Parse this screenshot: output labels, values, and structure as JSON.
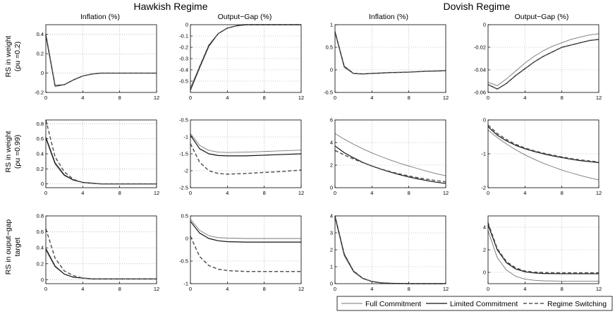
{
  "regimes": [
    "Hawkish Regime",
    "Dovish Regime"
  ],
  "columns": [
    "Inflation (%)",
    "Output−Gap (%)",
    "Inflation (%)",
    "Output−Gap (%)"
  ],
  "rows": [
    [
      "RS in weight",
      "(ρu =0.2)"
    ],
    [
      "RS in weight",
      "(ρu =0.99)"
    ],
    [
      "RS in ouput−gap",
      "target"
    ]
  ],
  "legend": [
    {
      "label": "Full Commitment",
      "style": "thin"
    },
    {
      "label": "Limited Commitment",
      "style": "solid"
    },
    {
      "label": "Regime Switching",
      "style": "dashed"
    }
  ],
  "colors": {
    "full": "#777777",
    "limited": "#111111",
    "switching": "#555555"
  },
  "chart_data": [
    {
      "type": "line",
      "row": 0,
      "col": 0,
      "xlim": [
        0,
        12
      ],
      "ylim": [
        -0.2,
        0.5
      ],
      "xticks": [
        "0",
        "4",
        "8",
        "12"
      ],
      "yticks": [
        "0.4",
        "0.2",
        "0",
        "-0.2"
      ],
      "ytick_values": [
        0.4,
        0.2,
        0,
        -0.2
      ],
      "x": [
        0,
        1,
        2,
        3,
        4,
        5,
        6,
        8,
        10,
        12
      ],
      "series": [
        {
          "name": "Full Commitment",
          "values": [
            0.38,
            -0.14,
            -0.12,
            -0.07,
            -0.03,
            -0.01,
            0.0,
            0.0,
            0.0,
            0.0
          ]
        },
        {
          "name": "Limited Commitment",
          "values": [
            0.4,
            -0.13,
            -0.12,
            -0.07,
            -0.03,
            -0.01,
            0.0,
            0.0,
            0.0,
            0.0
          ]
        },
        {
          "name": "Regime Switching",
          "values": [
            0.39,
            -0.13,
            -0.12,
            -0.07,
            -0.03,
            -0.01,
            0.0,
            0.0,
            0.0,
            0.0
          ]
        }
      ]
    },
    {
      "type": "line",
      "row": 0,
      "col": 1,
      "xlim": [
        0,
        12
      ],
      "ylim": [
        -0.6,
        0
      ],
      "xticks": [
        "0",
        "4",
        "8",
        "12"
      ],
      "yticks": [
        "0",
        "-0.1",
        "-0.2",
        "-0.3",
        "-0.4",
        "-0.5"
      ],
      "ytick_values": [
        0,
        -0.1,
        -0.2,
        -0.3,
        -0.4,
        -0.5
      ],
      "x": [
        0,
        1,
        2,
        3,
        4,
        5,
        6,
        8,
        10,
        12
      ],
      "series": [
        {
          "name": "Full Commitment",
          "values": [
            -0.56,
            -0.37,
            -0.18,
            -0.08,
            -0.03,
            -0.01,
            0.0,
            0.0,
            0.0,
            0.0
          ]
        },
        {
          "name": "Limited Commitment",
          "values": [
            -0.58,
            -0.38,
            -0.19,
            -0.08,
            -0.03,
            -0.01,
            0.0,
            0.0,
            0.0,
            0.0
          ]
        },
        {
          "name": "Regime Switching",
          "values": [
            -0.57,
            -0.37,
            -0.18,
            -0.08,
            -0.03,
            -0.01,
            0.0,
            0.0,
            0.0,
            0.0
          ]
        }
      ]
    },
    {
      "type": "line",
      "row": 0,
      "col": 2,
      "xlim": [
        0,
        12
      ],
      "ylim": [
        -0.5,
        1
      ],
      "xticks": [
        "0",
        "4",
        "8",
        "12"
      ],
      "yticks": [
        "1",
        "0.5",
        "0",
        "-0.5"
      ],
      "ytick_values": [
        1,
        0.5,
        0,
        -0.5
      ],
      "x": [
        0,
        1,
        2,
        3,
        4,
        6,
        8,
        10,
        12
      ],
      "series": [
        {
          "name": "Full Commitment",
          "values": [
            0.82,
            0.05,
            -0.08,
            -0.09,
            -0.08,
            -0.06,
            -0.05,
            -0.03,
            -0.02
          ]
        },
        {
          "name": "Limited Commitment",
          "values": [
            0.85,
            0.08,
            -0.08,
            -0.09,
            -0.08,
            -0.06,
            -0.05,
            -0.03,
            -0.02
          ]
        },
        {
          "name": "Regime Switching",
          "values": [
            0.84,
            0.07,
            -0.08,
            -0.09,
            -0.08,
            -0.06,
            -0.05,
            -0.03,
            -0.02
          ]
        }
      ]
    },
    {
      "type": "line",
      "row": 0,
      "col": 3,
      "xlim": [
        0,
        12
      ],
      "ylim": [
        -0.06,
        0
      ],
      "xticks": [
        "0",
        "4",
        "8",
        "12"
      ],
      "yticks": [
        "0",
        "-0.02",
        "-0.04",
        "-0.06"
      ],
      "ytick_values": [
        0,
        -0.02,
        -0.04,
        -0.06
      ],
      "x": [
        0,
        1,
        2,
        3,
        4,
        5,
        6,
        7,
        8,
        9,
        10,
        11,
        12
      ],
      "series": [
        {
          "name": "Full Commitment",
          "values": [
            -0.051,
            -0.054,
            -0.048,
            -0.041,
            -0.034,
            -0.028,
            -0.023,
            -0.019,
            -0.016,
            -0.013,
            -0.011,
            -0.009,
            -0.008
          ]
        },
        {
          "name": "Limited Commitment",
          "values": [
            -0.053,
            -0.057,
            -0.052,
            -0.045,
            -0.039,
            -0.033,
            -0.028,
            -0.024,
            -0.02,
            -0.018,
            -0.016,
            -0.014,
            -0.013
          ]
        },
        {
          "name": "Regime Switching",
          "values": [
            -0.053,
            -0.057,
            -0.052,
            -0.045,
            -0.039,
            -0.033,
            -0.028,
            -0.024,
            -0.02,
            -0.018,
            -0.016,
            -0.014,
            -0.013
          ]
        }
      ]
    },
    {
      "type": "line",
      "row": 1,
      "col": 0,
      "xlim": [
        0,
        12
      ],
      "ylim": [
        -0.05,
        0.85
      ],
      "xticks": [
        "0",
        "4",
        "8",
        "12"
      ],
      "yticks": [
        "0.8",
        "0.6",
        "0.4",
        "0.2",
        "0"
      ],
      "ytick_values": [
        0.8,
        0.6,
        0.4,
        0.2,
        0
      ],
      "x": [
        0,
        1,
        2,
        3,
        4,
        5,
        6,
        8,
        10,
        12
      ],
      "series": [
        {
          "name": "Full Commitment",
          "values": [
            0.6,
            0.26,
            0.11,
            0.05,
            0.02,
            0.01,
            0.0,
            0.0,
            0.0,
            0.0
          ]
        },
        {
          "name": "Limited Commitment",
          "values": [
            0.62,
            0.28,
            0.12,
            0.05,
            0.02,
            0.01,
            0.0,
            0.0,
            0.0,
            0.0
          ]
        },
        {
          "name": "Regime Switching",
          "values": [
            0.85,
            0.36,
            0.16,
            0.06,
            0.02,
            0.01,
            0.0,
            0.0,
            0.0,
            0.0
          ]
        }
      ]
    },
    {
      "type": "line",
      "row": 1,
      "col": 1,
      "xlim": [
        0,
        12
      ],
      "ylim": [
        -2.5,
        -0.5
      ],
      "xticks": [
        "0",
        "4",
        "8",
        "12"
      ],
      "yticks": [
        "-0.5",
        "-1",
        "-1.5",
        "-2",
        "-2.5"
      ],
      "ytick_values": [
        -0.5,
        -1,
        -1.5,
        -2,
        -2.5
      ],
      "x": [
        0,
        1,
        2,
        3,
        4,
        6,
        8,
        10,
        12
      ],
      "series": [
        {
          "name": "Full Commitment",
          "values": [
            -0.9,
            -1.25,
            -1.4,
            -1.45,
            -1.46,
            -1.45,
            -1.43,
            -1.41,
            -1.39
          ]
        },
        {
          "name": "Limited Commitment",
          "values": [
            -0.95,
            -1.35,
            -1.5,
            -1.55,
            -1.56,
            -1.56,
            -1.54,
            -1.52,
            -1.5
          ]
        },
        {
          "name": "Regime Switching",
          "values": [
            -1.2,
            -1.75,
            -2.0,
            -2.08,
            -2.1,
            -2.08,
            -2.05,
            -2.02,
            -1.98
          ]
        }
      ]
    },
    {
      "type": "line",
      "row": 1,
      "col": 2,
      "xlim": [
        0,
        12
      ],
      "ylim": [
        0,
        6
      ],
      "xticks": [
        "0",
        "4",
        "8",
        "12"
      ],
      "yticks": [
        "6",
        "4",
        "2",
        "0"
      ],
      "ytick_values": [
        6,
        4,
        2,
        0
      ],
      "x": [
        0,
        1,
        2,
        3,
        4,
        5,
        6,
        7,
        8,
        9,
        10,
        11,
        12
      ],
      "series": [
        {
          "name": "Full Commitment",
          "values": [
            4.8,
            4.3,
            3.85,
            3.45,
            3.08,
            2.75,
            2.45,
            2.17,
            1.92,
            1.68,
            1.45,
            1.24,
            1.05
          ]
        },
        {
          "name": "Limited Commitment",
          "values": [
            3.7,
            3.1,
            2.65,
            2.25,
            1.92,
            1.63,
            1.38,
            1.15,
            0.95,
            0.78,
            0.62,
            0.48,
            0.38
          ]
        },
        {
          "name": "Regime Switching",
          "values": [
            3.3,
            2.9,
            2.55,
            2.22,
            1.92,
            1.65,
            1.42,
            1.22,
            1.04,
            0.88,
            0.74,
            0.62,
            0.52
          ]
        }
      ]
    },
    {
      "type": "line",
      "row": 1,
      "col": 3,
      "xlim": [
        0,
        12
      ],
      "ylim": [
        -2,
        0
      ],
      "xticks": [
        "0",
        "4",
        "8",
        "12"
      ],
      "yticks": [
        "0",
        "-1",
        "-2"
      ],
      "ytick_values": [
        0,
        -1,
        -2
      ],
      "x": [
        0,
        1,
        2,
        3,
        4,
        5,
        6,
        7,
        8,
        9,
        10,
        11,
        12
      ],
      "series": [
        {
          "name": "Full Commitment",
          "values": [
            -0.3,
            -0.52,
            -0.71,
            -0.88,
            -1.03,
            -1.16,
            -1.28,
            -1.38,
            -1.48,
            -1.56,
            -1.64,
            -1.71,
            -1.77
          ]
        },
        {
          "name": "Limited Commitment",
          "values": [
            -0.2,
            -0.45,
            -0.62,
            -0.75,
            -0.85,
            -0.93,
            -1.0,
            -1.06,
            -1.11,
            -1.16,
            -1.2,
            -1.23,
            -1.26
          ]
        },
        {
          "name": "Regime Switching",
          "values": [
            -0.15,
            -0.4,
            -0.58,
            -0.72,
            -0.83,
            -0.91,
            -0.98,
            -1.04,
            -1.09,
            -1.14,
            -1.18,
            -1.21,
            -1.24
          ]
        }
      ]
    },
    {
      "type": "line",
      "row": 2,
      "col": 0,
      "xlim": [
        0,
        12
      ],
      "ylim": [
        -0.05,
        0.8
      ],
      "xticks": [
        "0",
        "4",
        "8",
        "12"
      ],
      "yticks": [
        "0.8",
        "0.6",
        "0.4",
        "0.2",
        "0"
      ],
      "ytick_values": [
        0.8,
        0.6,
        0.4,
        0.2,
        0
      ],
      "x": [
        0,
        1,
        2,
        3,
        4,
        5,
        6,
        8,
        10,
        12
      ],
      "series": [
        {
          "name": "Full Commitment",
          "values": [
            0.37,
            0.16,
            0.07,
            0.03,
            0.02,
            0.01,
            0.01,
            0.01,
            0.01,
            0.01
          ]
        },
        {
          "name": "Limited Commitment",
          "values": [
            0.39,
            0.17,
            0.07,
            0.03,
            0.02,
            0.01,
            0.01,
            0.01,
            0.01,
            0.01
          ]
        },
        {
          "name": "Regime Switching",
          "values": [
            0.64,
            0.27,
            0.11,
            0.05,
            0.02,
            0.01,
            0.01,
            0.01,
            0.01,
            0.01
          ]
        }
      ]
    },
    {
      "type": "line",
      "row": 2,
      "col": 1,
      "xlim": [
        0,
        12
      ],
      "ylim": [
        -1,
        0.5
      ],
      "xticks": [
        "0",
        "4",
        "8",
        "12"
      ],
      "yticks": [
        "0.5",
        "0",
        "-0.5",
        "-1"
      ],
      "ytick_values": [
        0.5,
        0,
        -0.5,
        -1
      ],
      "x": [
        0,
        1,
        2,
        3,
        4,
        6,
        8,
        10,
        12
      ],
      "series": [
        {
          "name": "Full Commitment",
          "values": [
            0.43,
            0.18,
            0.06,
            0.02,
            0.01,
            0.0,
            0.0,
            0.0,
            0.0
          ]
        },
        {
          "name": "Limited Commitment",
          "values": [
            0.38,
            0.12,
            0.0,
            -0.05,
            -0.07,
            -0.08,
            -0.08,
            -0.08,
            -0.08
          ]
        },
        {
          "name": "Regime Switching",
          "values": [
            0.05,
            -0.4,
            -0.6,
            -0.68,
            -0.71,
            -0.73,
            -0.73,
            -0.73,
            -0.73
          ]
        }
      ]
    },
    {
      "type": "line",
      "row": 2,
      "col": 2,
      "xlim": [
        0,
        12
      ],
      "ylim": [
        0,
        4
      ],
      "xticks": [
        "0",
        "4",
        "8",
        "12"
      ],
      "yticks": [
        "4",
        "3",
        "2",
        "1",
        "0"
      ],
      "ytick_values": [
        4,
        3,
        2,
        1,
        0
      ],
      "x": [
        0,
        1,
        2,
        3,
        4,
        5,
        6,
        8,
        10,
        12
      ],
      "series": [
        {
          "name": "Full Commitment",
          "values": [
            3.9,
            1.65,
            0.7,
            0.3,
            0.12,
            0.05,
            0.02,
            0.0,
            0.0,
            0.0
          ]
        },
        {
          "name": "Limited Commitment",
          "values": [
            4.0,
            1.75,
            0.75,
            0.32,
            0.13,
            0.05,
            0.02,
            0.0,
            0.0,
            0.0
          ]
        },
        {
          "name": "Regime Switching",
          "values": [
            3.95,
            1.7,
            0.73,
            0.31,
            0.13,
            0.05,
            0.02,
            0.0,
            0.0,
            0.0
          ]
        }
      ]
    },
    {
      "type": "line",
      "row": 2,
      "col": 3,
      "xlim": [
        0,
        12
      ],
      "ylim": [
        -1,
        5
      ],
      "xticks": [
        "0",
        "4",
        "8",
        "12"
      ],
      "yticks": [
        "4",
        "2",
        "0"
      ],
      "ytick_values": [
        4,
        2,
        0
      ],
      "x": [
        0,
        1,
        2,
        3,
        4,
        5,
        6,
        8,
        10,
        12
      ],
      "series": [
        {
          "name": "Full Commitment",
          "values": [
            3.7,
            1.3,
            0.2,
            -0.35,
            -0.6,
            -0.7,
            -0.75,
            -0.78,
            -0.78,
            -0.78
          ]
        },
        {
          "name": "Limited Commitment",
          "values": [
            4.2,
            2.0,
            0.85,
            0.3,
            0.05,
            -0.05,
            -0.1,
            -0.12,
            -0.12,
            -0.12
          ]
        },
        {
          "name": "Regime Switching",
          "values": [
            4.4,
            2.1,
            0.95,
            0.4,
            0.12,
            0.02,
            -0.02,
            -0.04,
            -0.04,
            -0.04
          ]
        }
      ]
    }
  ]
}
